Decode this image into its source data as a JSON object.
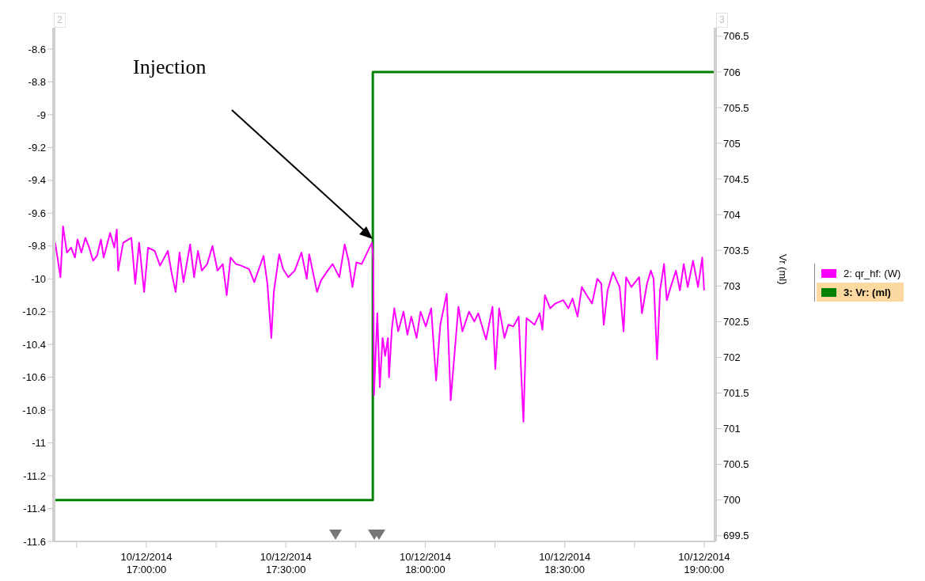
{
  "chart_data": {
    "type": "line",
    "xlim": [
      "2014-10-12T16:40:05",
      "2014-10-12T19:02:24"
    ],
    "xticks": [
      {
        "value": "2014-10-12T16:45",
        "label": null
      },
      {
        "value": "2014-10-12T17:00",
        "label": "10/12/2014\n17:00:00"
      },
      {
        "value": "2014-10-12T17:15",
        "label": null
      },
      {
        "value": "2014-10-12T17:30",
        "label": "10/12/2014\n17:30:00"
      },
      {
        "value": "2014-10-12T17:45",
        "label": null
      },
      {
        "value": "2014-10-12T18:00",
        "label": "10/12/2014\n18:00:00"
      },
      {
        "value": "2014-10-12T18:15",
        "label": null
      },
      {
        "value": "2014-10-12T18:30",
        "label": "10/12/2014\n18:30:00"
      },
      {
        "value": "2014-10-12T18:45",
        "label": null
      },
      {
        "value": "2014-10-12T19:00",
        "label": "10/12/2014\n19:00:00"
      }
    ],
    "ylim": [
      -11.6,
      -8.47
    ],
    "yticks": [
      -11.6,
      -11.4,
      -11.2,
      -11,
      -10.8,
      -10.6,
      -10.4,
      -10.2,
      -10,
      -9.8,
      -9.6,
      -9.4,
      -9.2,
      -9,
      -8.8,
      -8.6
    ],
    "y2lim": [
      699.42,
      706.62
    ],
    "y2ticks": [
      699.5,
      700,
      700.5,
      701,
      701.5,
      702,
      702.5,
      703,
      703.5,
      704,
      704.5,
      705,
      705.5,
      706,
      706.5
    ],
    "y2label": "Vr (ml)",
    "legend": "right",
    "marker": "none",
    "line_style": "solid",
    "annotations": [
      "2",
      "3",
      "Injection"
    ],
    "series": [
      {
        "name": "2: qr_hf: (W)",
        "color": "#ff00ff",
        "x": [
          "2014-10-12T16:40:23",
          "2014-10-12T16:41:31",
          "2014-10-12T16:42:04",
          "2014-10-12T16:42:54",
          "2014-10-12T16:43:48",
          "2014-10-12T16:44:38",
          "2014-10-12T16:45:11",
          "2014-10-12T16:46:01",
          "2014-10-12T16:46:52",
          "2014-10-12T16:47:42",
          "2014-10-12T16:48:32",
          "2014-10-12T16:49:23",
          "2014-10-12T16:50:13",
          "2014-10-12T16:50:49",
          "2014-10-12T16:52:12",
          "2014-10-12T16:53:06",
          "2014-10-12T16:53:38",
          "2014-10-12T16:53:56",
          "2014-10-12T16:55:01",
          "2014-10-12T16:56:46",
          "2014-10-12T16:57:36",
          "2014-10-12T16:58:26",
          "2014-10-12T16:59:31",
          "2014-10-12T17:00:22",
          "2014-10-12T17:01:48",
          "2014-10-12T17:02:56",
          "2014-10-12T17:04:37",
          "2014-10-12T17:05:28",
          "2014-10-12T17:06:18",
          "2014-10-12T17:07:08",
          "2014-10-12T17:07:59",
          "2014-10-12T17:09:25",
          "2014-10-12T17:10:16",
          "2014-10-12T17:11:06",
          "2014-10-12T17:11:56",
          "2014-10-12T17:13:05",
          "2014-10-12T17:14:13",
          "2014-10-12T17:15:18",
          "2014-10-12T17:16:26",
          "2014-10-12T17:17:17",
          "2014-10-12T17:18:07",
          "2014-10-12T17:19:16",
          "2014-10-12T17:20:24",
          "2014-10-12T17:22:05",
          "2014-10-12T17:23:13",
          "2014-10-12T17:25:12",
          "2014-10-12T17:26:02",
          "2014-10-12T17:26:53",
          "2014-10-12T17:27:25",
          "2014-10-12T17:28:34",
          "2014-10-12T17:29:24",
          "2014-10-12T17:30:32",
          "2014-10-12T17:31:55",
          "2014-10-12T17:33:22",
          "2014-10-12T17:34:30",
          "2014-10-12T17:35:02",
          "2014-10-12T17:36:43",
          "2014-10-12T17:37:34",
          "2014-10-12T17:39:00",
          "2014-10-12T17:40:05",
          "2014-10-12T17:41:31",
          "2014-10-12T17:42:40",
          "2014-10-12T17:43:30",
          "2014-10-12T17:44:20",
          "2014-10-12T17:45:11",
          "2014-10-12T17:46:19",
          "2014-10-12T17:48:00",
          "2014-10-12T17:48:32",
          "2014-10-12T17:48:50",
          "2014-10-12T17:48:58",
          "2014-10-12T17:49:41",
          "2014-10-12T17:50:13",
          "2014-10-12T17:50:49",
          "2014-10-12T17:51:22",
          "2014-10-12T17:51:58",
          "2014-10-12T17:52:12",
          "2014-10-12T17:52:48",
          "2014-10-12T17:53:20",
          "2014-10-12T17:54:11",
          "2014-10-12T17:55:19",
          "2014-10-12T17:56:10",
          "2014-10-12T17:57:00",
          "2014-10-12T17:58:08",
          "2014-10-12T17:58:59",
          "2014-10-12T18:00:07",
          "2014-10-12T18:01:16",
          "2014-10-12T18:02:20",
          "2014-10-12T18:03:14",
          "2014-10-12T18:04:37",
          "2014-10-12T18:05:28",
          "2014-10-12T18:07:08",
          "2014-10-12T18:07:59",
          "2014-10-12T18:09:25",
          "2014-10-12T18:10:34",
          "2014-10-12T18:11:24",
          "2014-10-12T18:13:05",
          "2014-10-12T18:14:28",
          "2014-10-12T18:15:04",
          "2014-10-12T18:15:54",
          "2014-10-12T18:17:02",
          "2014-10-12T18:17:53",
          "2014-10-12T18:18:58",
          "2014-10-12T18:20:06",
          "2014-10-12T18:21:07",
          "2014-10-12T18:21:47",
          "2014-10-12T18:23:31",
          "2014-10-12T18:24:36",
          "2014-10-12T18:25:12",
          "2014-10-12T18:25:44",
          "2014-10-12T18:26:53",
          "2014-10-12T18:28:01",
          "2014-10-12T18:29:42",
          "2014-10-12T18:30:47",
          "2014-10-12T18:31:41",
          "2014-10-12T18:32:46",
          "2014-10-12T18:33:40",
          "2014-10-12T18:34:44",
          "2014-10-12T18:35:53",
          "2014-10-12T18:37:01",
          "2014-10-12T18:37:52",
          "2014-10-12T18:38:24",
          "2014-10-12T18:39:14",
          "2014-10-12T18:40:23",
          "2014-10-12T18:41:49",
          "2014-10-12T18:42:40",
          "2014-10-12T18:43:12",
          "2014-10-12T18:44:20",
          "2014-10-12T18:46:01",
          "2014-10-12T18:46:37",
          "2014-10-12T18:47:42",
          "2014-10-12T18:48:32",
          "2014-10-12T18:49:08",
          "2014-10-12T18:49:52",
          "2014-10-12T18:50:31",
          "2014-10-12T18:51:22",
          "2014-10-12T18:51:58",
          "2014-10-12T18:52:48",
          "2014-10-12T18:53:56",
          "2014-10-12T18:54:47",
          "2014-10-12T18:55:37",
          "2014-10-12T18:56:28",
          "2014-10-12T18:57:36",
          "2014-10-12T18:58:41",
          "2014-10-12T18:59:35",
          "2014-10-12T19:00:00"
        ],
        "values": [
          -9.78,
          -9.99,
          -9.68,
          -9.84,
          -9.81,
          -9.87,
          -9.76,
          -9.84,
          -9.75,
          -9.81,
          -9.89,
          -9.86,
          -9.76,
          -9.87,
          -9.72,
          -9.81,
          -9.7,
          -9.95,
          -9.78,
          -9.75,
          -10.03,
          -9.78,
          -10.08,
          -9.81,
          -9.83,
          -9.92,
          -9.83,
          -9.97,
          -10.08,
          -9.84,
          -10.02,
          -9.79,
          -9.99,
          -9.83,
          -9.95,
          -9.91,
          -9.8,
          -9.95,
          -9.91,
          -10.1,
          -9.87,
          -9.91,
          -9.92,
          -9.94,
          -10.02,
          -9.86,
          -10.03,
          -10.36,
          -10.08,
          -9.85,
          -9.94,
          -9.99,
          -9.95,
          -9.84,
          -10.0,
          -9.85,
          -10.08,
          -10.01,
          -9.95,
          -9.91,
          -9.99,
          -9.79,
          -9.89,
          -10.05,
          -9.9,
          -9.91,
          -9.81,
          -9.78,
          -9.89,
          -10.71,
          -10.21,
          -10.66,
          -10.36,
          -10.47,
          -10.36,
          -10.6,
          -10.31,
          -10.18,
          -10.32,
          -10.2,
          -10.34,
          -10.23,
          -10.36,
          -10.2,
          -10.29,
          -10.18,
          -10.62,
          -10.28,
          -10.09,
          -10.74,
          -10.17,
          -10.32,
          -10.2,
          -10.26,
          -10.21,
          -10.37,
          -10.17,
          -10.55,
          -10.18,
          -10.36,
          -10.28,
          -10.29,
          -10.23,
          -10.87,
          -10.24,
          -10.28,
          -10.21,
          -10.31,
          -10.1,
          -10.18,
          -10.15,
          -10.13,
          -10.18,
          -10.12,
          -10.23,
          -10.05,
          -10.1,
          -10.15,
          -10.0,
          -10.03,
          -10.28,
          -10.07,
          -9.96,
          -10.05,
          -10.32,
          -9.99,
          -10.05,
          -9.99,
          -10.21,
          -10.03,
          -9.95,
          -10.0,
          -10.49,
          -10.07,
          -9.91,
          -10.13,
          -10.05,
          -9.95,
          -10.07,
          -9.91,
          -10.05,
          -9.89,
          -10.05,
          -9.87,
          -10.07
        ]
      },
      {
        "name": "3: Vr: (ml)",
        "color": "#008000",
        "type": "step",
        "axis": "y2",
        "x": [
          "2014-10-12T16:40:05",
          "2014-10-12T17:48:43",
          "2014-10-12T19:02:24"
        ],
        "values": [
          700,
          706,
          706
        ]
      }
    ]
  }
}
